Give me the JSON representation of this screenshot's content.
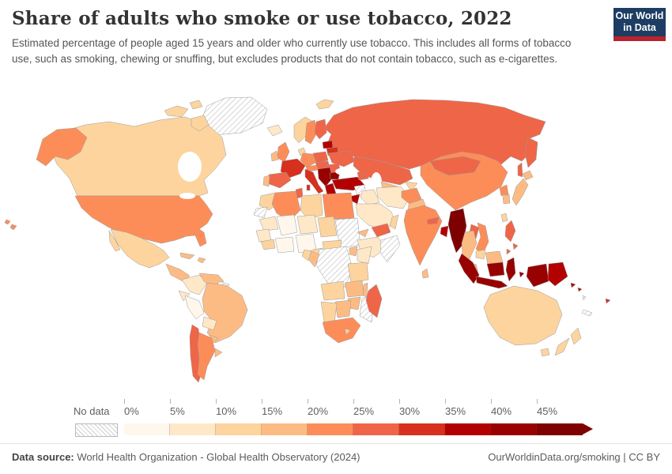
{
  "header": {
    "title": "Share of adults who smoke or use tobacco, 2022",
    "subtitle": "Estimated percentage of people aged 15 years and older who currently use tobacco. This includes all forms of tobacco use, such as smoking, chewing or snuffing, but excludes products that do not contain tobacco, such as e-cigarettes.",
    "logo": {
      "line1": "Our World",
      "line2": "in Data",
      "bg_color": "#1d3d63",
      "accent_color": "#b8232e"
    }
  },
  "legend": {
    "no_data_label": "No data",
    "tick_labels": [
      "0%",
      "5%",
      "10%",
      "15%",
      "20%",
      "25%",
      "30%",
      "35%",
      "40%",
      "45%"
    ],
    "bins": [
      {
        "label": "0-5%",
        "color": "#fff7ec"
      },
      {
        "label": "5-10%",
        "color": "#fee8c8"
      },
      {
        "label": "10-15%",
        "color": "#fdd49e"
      },
      {
        "label": "15-20%",
        "color": "#fdbb84"
      },
      {
        "label": "20-25%",
        "color": "#fc8d59"
      },
      {
        "label": "25-30%",
        "color": "#ef6548"
      },
      {
        "label": "30-35%",
        "color": "#d7301f"
      },
      {
        "label": "35-40%",
        "color": "#b30000"
      },
      {
        "label": "40-45%",
        "color": "#990000"
      },
      {
        "label": "45%+",
        "color": "#7f0000"
      }
    ]
  },
  "footer": {
    "source_label": "Data source:",
    "source_text": " World Health Organization - Global Health Observatory (2024)",
    "link_text": "OurWorldinData.org/smoking | CC BY"
  },
  "map": {
    "border_color": "#9a9a9a",
    "regions": {
      "greenland": "no-data",
      "svalbard": "#fdd49e",
      "iceland": "#fee8c8",
      "canada": "#fdd49e",
      "united-states": "#fc8d59",
      "mexico": "#fdd49e",
      "central-america": "#fdbb84",
      "cuba": "#fdbb84",
      "hispaniola": "#fdbb84",
      "colombia": "#fee8c8",
      "venezuela": "#fdbb84",
      "guianas": "no-data",
      "ecuador": "#fee8c8",
      "peru": "#fff7ec",
      "brazil": "#fdbb84",
      "bolivia": "#fee8c8",
      "paraguay": "#fdbb84",
      "chile": "#ef6548",
      "argentina": "#fc8d59",
      "uruguay": "#fdbb84",
      "united-kingdom": "#fc8d59",
      "ireland": "#fdbb84",
      "norway": "#fdd49e",
      "sweden": "#fc8d59",
      "finland": "#ef6548",
      "denmark": "#fdd49e",
      "baltics": "#b30000",
      "poland": "#ef6548",
      "germany": "#fc8d59",
      "france": "#d7301f",
      "spain": "#ef6548",
      "portugal": "#fdbb84",
      "italy": "#d7301f",
      "alpine": "#fc8d59",
      "central-europe": "#ef6548",
      "balkans": "#990000",
      "greece": "#b30000",
      "romania": "#ef6548",
      "bulgaria": "#990000",
      "ukraine": "#ef6548",
      "belarus": "#d7301f",
      "turkey": "#b30000",
      "caucasus": "#ef6548",
      "russia": "#ef6548",
      "kazakhstan": "#ef6548",
      "uzbekistan-turkmenistan": "#fdbb84",
      "kyrgyzstan-tajikistan": "#fdd49e",
      "syria": "no-data",
      "jordan": "#b30000",
      "iraq": "#fee8c8",
      "saudi-arabia": "#fee8c8",
      "yemen": "#ef6548",
      "oman": "#fdd49e",
      "iran": "#fee8c8",
      "afghanistan": "#fc8d59",
      "pakistan": "#fdbb84",
      "morocco": "#fdd49e",
      "western-sahara": "no-data",
      "algeria": "#fc8d59",
      "tunisia": "#ef6548",
      "libya": "#fdd49e",
      "egypt": "#fc8d59",
      "mauritania": "#fee8c8",
      "mali": "#fff7ec",
      "niger": "#fee8c8",
      "chad": "#fdd49e",
      "senegal": "#fee8c8",
      "guinea": "#fdd49e",
      "ghana-ivory-coast": "#fff7ec",
      "nigeria": "#fff7ec",
      "cameroon": "#fdd49e",
      "central-african-republic": "#fdd49e",
      "sudan": "no-data",
      "eritrea": "#fdbb84",
      "ethiopia": "#fee8c8",
      "somalia": "no-data",
      "uganda": "#fdbb84",
      "kenya": "#fee8c8",
      "dr-congo": "no-data",
      "congo": "#fdbb84",
      "gabon": "#fdd49e",
      "tanzania": "#fdd49e",
      "angola": "#fdd49e",
      "zambia": "#fdbb84",
      "malawi": "#fdbb84",
      "mozambique": "no-data",
      "zimbabwe": "#fdbb84",
      "botswana": "#fdbb84",
      "namibia": "#fdd49e",
      "south-africa": "#fc8d59",
      "lesotho": "#fdd49e",
      "madagascar": "#ef6548",
      "india": "#fc8d59",
      "nepal": "#ef6548",
      "bangladesh": "#b30000",
      "sri-lanka": "#fdbb84",
      "china": "#fc8d59",
      "mongolia": "#ef6548",
      "north-korea": "#fc8d59",
      "south-korea": "#fdbb84",
      "japan": "#fdbb84",
      "taiwan": "#fdd49e",
      "myanmar": "#7f0000",
      "thailand": "#fdbb84",
      "laos": "#ef6548",
      "vietnam": "#fc8d59",
      "cambodia": "#fdd49e",
      "malaysia": "#fdbb84",
      "indonesia": "#990000",
      "philippines": "#ef6548",
      "papua-new-guinea": "#b30000",
      "solomon-islands": "#b30000",
      "timor-leste": "no-data",
      "vanuatu": "no-data",
      "new-caledonia": "no-data",
      "fiji": "#d7301f",
      "australia": "#fdd49e",
      "new-zealand": "#fdd49e"
    }
  },
  "chart_data": {
    "type": "choropleth",
    "title": "Share of adults who smoke or use tobacco, 2022",
    "unit": "% of people aged 15+ who currently use tobacco",
    "year": 2022,
    "legend_bins": [
      "0-5%",
      "5-10%",
      "10-15%",
      "15-20%",
      "20-25%",
      "25-30%",
      "30-35%",
      "35-40%",
      "40-45%",
      "45%+"
    ],
    "bin_colors": [
      "#fff7ec",
      "#fee8c8",
      "#fdd49e",
      "#fdbb84",
      "#fc8d59",
      "#ef6548",
      "#d7301f",
      "#b30000",
      "#990000",
      "#7f0000"
    ],
    "regions_by_bin": {
      "0-5%": [
        "Peru",
        "Mali",
        "Nigeria",
        "Ghana / Ivory Coast"
      ],
      "5-10%": [
        "Colombia",
        "Ecuador",
        "Bolivia",
        "Iceland",
        "Iraq",
        "Saudi Arabia",
        "Iran",
        "Ethiopia",
        "Kenya",
        "Mauritania",
        "Niger",
        "Senegal"
      ],
      "10-15%": [
        "Canada",
        "Mexico",
        "Norway",
        "Denmark",
        "Morocco",
        "Libya",
        "Chad",
        "Guinea",
        "Cameroon",
        "Central African Republic",
        "Gabon",
        "Tanzania",
        "Angola",
        "Namibia",
        "Lesotho",
        "Oman",
        "Kyrgyzstan / Tajikistan",
        "Taiwan",
        "Cambodia",
        "Australia",
        "New Zealand"
      ],
      "15-20%": [
        "Venezuela",
        "Paraguay",
        "Uruguay",
        "Cuba",
        "Central America",
        "Ireland",
        "Portugal",
        "Pakistan",
        "Uzbekistan / Turkmenistan",
        "Eritrea",
        "Uganda",
        "Congo",
        "Zambia",
        "Malawi",
        "Zimbabwe",
        "Botswana",
        "Sri Lanka",
        "Japan",
        "South Korea",
        "Thailand",
        "Malaysia"
      ],
      "20-25%": [
        "United States",
        "Argentina",
        "United Kingdom",
        "Sweden",
        "Germany",
        "Algeria",
        "Egypt",
        "South Africa",
        "Afghanistan",
        "India",
        "China",
        "North Korea",
        "Vietnam"
      ],
      "25-30%": [
        "Chile",
        "Spain",
        "Finland",
        "Poland",
        "Central Europe",
        "Romania",
        "Ukraine",
        "Russia",
        "Kazakhstan",
        "Caucasus",
        "Tunisia",
        "Madagascar",
        "Yemen",
        "Nepal",
        "Laos",
        "Mongolia",
        "Philippines"
      ],
      "30-35%": [
        "France",
        "Italy",
        "Belarus",
        "Fiji"
      ],
      "35-40%": [
        "Turkey",
        "Greece",
        "Baltic states",
        "Jordan",
        "Bangladesh",
        "Papua New Guinea",
        "Solomon Islands"
      ],
      "40-45%": [
        "Balkans",
        "Bulgaria",
        "Indonesia"
      ],
      "45%+": [
        "Myanmar"
      ],
      "No data": [
        "Greenland",
        "Guianas",
        "Western Sahara",
        "Sudan",
        "Somalia",
        "DR Congo",
        "Mozambique",
        "Syria",
        "Timor-Leste",
        "Vanuatu",
        "New Caledonia"
      ]
    }
  }
}
